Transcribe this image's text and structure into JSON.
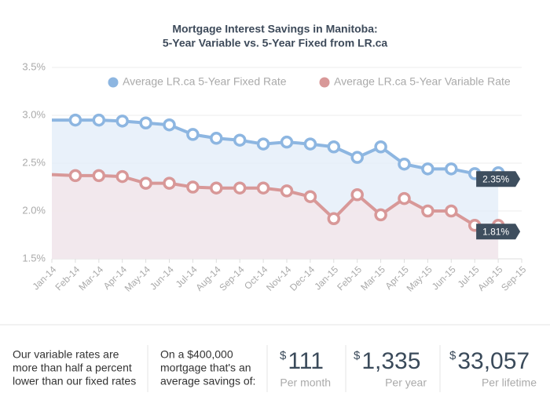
{
  "chart_data": {
    "type": "line",
    "title": [
      "Mortgage Interest Savings in Manitoba:",
      "5-Year Variable vs. 5-Year Fixed from LR.ca"
    ],
    "categories": [
      "Jan-14",
      "Feb-14",
      "Mar-14",
      "Apr-14",
      "May-14",
      "Jun-14",
      "Jul-14",
      "Aug-14",
      "Sep-14",
      "Oct-14",
      "Nov-14",
      "Dec-14",
      "Jan-15",
      "Feb-15",
      "Mar-15",
      "Apr-15",
      "May-15",
      "Jun-15",
      "Jul-15",
      "Aug-15",
      "Sep-15"
    ],
    "series": [
      {
        "name": "Average LR.ca 5-Year Fixed Rate",
        "color": "#8db6e1",
        "fill": "#e4eef9",
        "values": [
          2.95,
          2.95,
          2.95,
          2.94,
          2.92,
          2.9,
          2.8,
          2.76,
          2.74,
          2.7,
          2.72,
          2.7,
          2.67,
          2.56,
          2.67,
          2.49,
          2.44,
          2.44,
          2.39,
          2.4,
          null
        ]
      },
      {
        "name": "Average LR.ca 5-Year Variable Rate",
        "color": "#d89898",
        "fill": "#f4e6ea",
        "values": [
          2.38,
          2.37,
          2.37,
          2.36,
          2.29,
          2.29,
          2.25,
          2.24,
          2.24,
          2.24,
          2.21,
          2.15,
          1.92,
          2.17,
          1.96,
          2.13,
          2.0,
          2.0,
          1.85,
          1.85,
          null
        ]
      }
    ],
    "annotations": [
      "2.35%",
      "1.81%"
    ],
    "ylim": [
      1.5,
      3.5
    ],
    "yticks": [
      {
        "value": 1.5,
        "label": "1.5%"
      },
      {
        "value": 2.0,
        "label": "2.0%"
      },
      {
        "value": 2.5,
        "label": "2.5%"
      },
      {
        "value": 3.0,
        "label": "3.0%"
      },
      {
        "value": 3.5,
        "label": "3.5%"
      }
    ],
    "grid": true
  },
  "summary": {
    "notes": [
      [
        "Our variable rates are",
        "more than half a percent",
        "lower than our fixed rates"
      ],
      [
        "On a $400,000",
        "mortgage that's an",
        "average savings of:"
      ]
    ],
    "stats": [
      {
        "currency": "$",
        "amount": "111",
        "caption": "Per month"
      },
      {
        "currency": "$",
        "amount": "1,335",
        "caption": "Per year"
      },
      {
        "currency": "$",
        "amount": "33,057",
        "caption": "Per lifetime"
      }
    ]
  }
}
